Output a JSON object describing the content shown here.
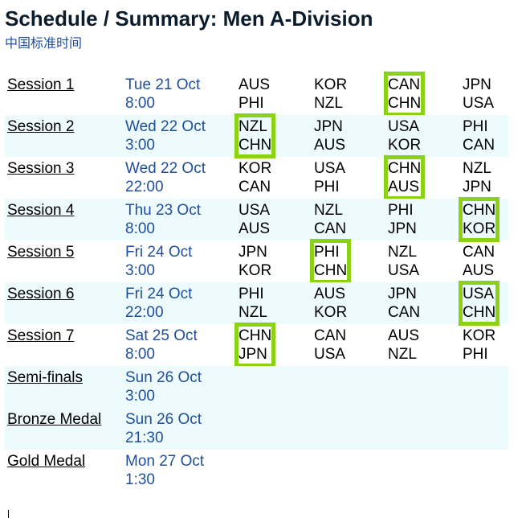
{
  "header": {
    "title": "Schedule / Summary: Men A-Division",
    "timezone": "中国标准时间"
  },
  "colors": {
    "title": "#0b1c2c",
    "date_text": "#1f4e9c",
    "row_shade": "#eefbfc",
    "highlight": "#8bd114"
  },
  "sessions": [
    {
      "label": "Session 1",
      "date": "Tue 21 Oct",
      "time": "8:00",
      "matches": [
        {
          "a": "AUS",
          "b": "PHI"
        },
        {
          "a": "KOR",
          "b": "NZL"
        },
        {
          "a": "CAN",
          "b": "CHN",
          "highlighted": true
        },
        {
          "a": "JPN",
          "b": "USA"
        }
      ]
    },
    {
      "label": "Session 2",
      "date": "Wed 22 Oct",
      "time": "3:00",
      "matches": [
        {
          "a": "NZL",
          "b": "CHN",
          "highlighted": true
        },
        {
          "a": "JPN",
          "b": "AUS"
        },
        {
          "a": "USA",
          "b": "KOR"
        },
        {
          "a": "PHI",
          "b": "CAN"
        }
      ]
    },
    {
      "label": "Session 3",
      "date": "Wed 22 Oct",
      "time": "22:00",
      "matches": [
        {
          "a": "KOR",
          "b": "CAN"
        },
        {
          "a": "USA",
          "b": "PHI"
        },
        {
          "a": "CHN",
          "b": "AUS",
          "highlighted": true
        },
        {
          "a": "NZL",
          "b": "JPN"
        }
      ]
    },
    {
      "label": "Session 4",
      "date": "Thu 23 Oct",
      "time": "8:00",
      "matches": [
        {
          "a": "USA",
          "b": "AUS"
        },
        {
          "a": "NZL",
          "b": "CAN"
        },
        {
          "a": "PHI",
          "b": "JPN"
        },
        {
          "a": "CHN",
          "b": "KOR",
          "highlighted": true
        }
      ]
    },
    {
      "label": "Session 5",
      "date": "Fri 24 Oct",
      "time": "3:00",
      "matches": [
        {
          "a": "JPN",
          "b": "KOR"
        },
        {
          "a": "PHI",
          "b": "CHN",
          "highlighted": true
        },
        {
          "a": "NZL",
          "b": "USA"
        },
        {
          "a": "CAN",
          "b": "AUS"
        }
      ]
    },
    {
      "label": "Session 6",
      "date": "Fri 24 Oct",
      "time": "22:00",
      "matches": [
        {
          "a": "PHI",
          "b": "NZL"
        },
        {
          "a": "AUS",
          "b": "KOR"
        },
        {
          "a": "JPN",
          "b": "CAN"
        },
        {
          "a": "USA",
          "b": "CHN",
          "highlighted": true
        }
      ]
    },
    {
      "label": "Session 7",
      "date": "Sat 25 Oct",
      "time": "8:00",
      "matches": [
        {
          "a": "CHN",
          "b": "JPN",
          "highlighted": true
        },
        {
          "a": "CAN",
          "b": "USA"
        },
        {
          "a": "AUS",
          "b": "NZL"
        },
        {
          "a": "KOR",
          "b": "PHI"
        }
      ]
    },
    {
      "label": "Semi-finals",
      "date": "Sun 26 Oct",
      "time": "3:00",
      "matches": []
    },
    {
      "label": "Bronze Medal",
      "date": "Sun 26 Oct",
      "time": "21:30",
      "matches": []
    },
    {
      "label": "Gold Medal",
      "date": "Mon 27 Oct",
      "time": "1:30",
      "matches": []
    }
  ]
}
